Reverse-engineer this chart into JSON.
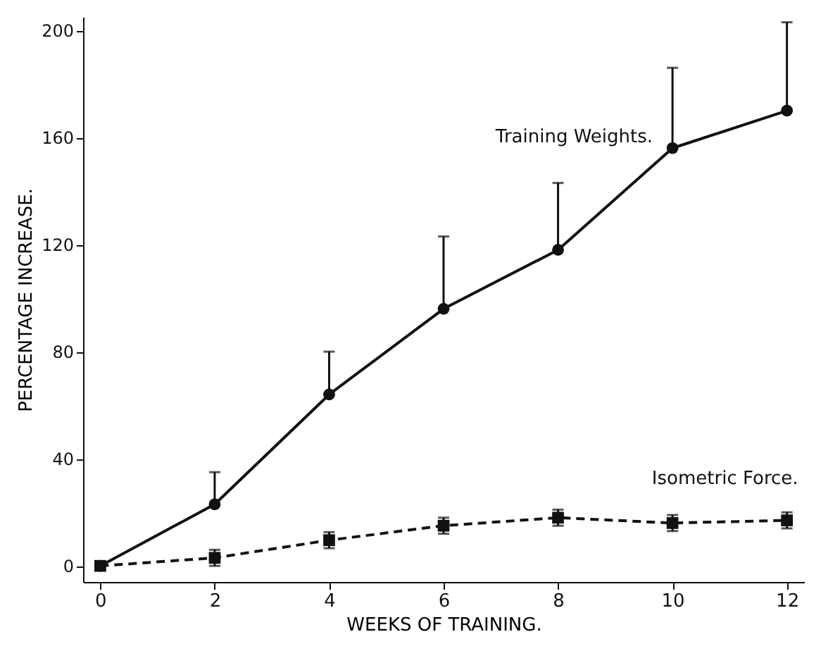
{
  "chart_data": {
    "type": "line",
    "xlabel": "WEEKS OF TRAINING.",
    "ylabel": "PERCENTAGE INCREASE.",
    "x": [
      0,
      2,
      4,
      6,
      8,
      10,
      12
    ],
    "xlim": [
      -0.3,
      12.3
    ],
    "xticks": [
      0,
      2,
      4,
      6,
      8,
      10,
      12
    ],
    "ylim": [
      -6,
      205
    ],
    "yticks": [
      0,
      40,
      80,
      120,
      160,
      200
    ],
    "grid": false,
    "series": [
      {
        "name": "Training Weights.",
        "color": "#111111",
        "marker": "circle",
        "line_style": "solid",
        "values": [
          0,
          23,
          64,
          96,
          118,
          156,
          170
        ],
        "errors": [
          null,
          [
            23,
            35
          ],
          [
            64,
            80
          ],
          [
            96,
            123
          ],
          [
            118,
            143
          ],
          [
            156,
            186
          ],
          [
            170,
            203
          ]
        ]
      },
      {
        "name": "Isometric Force.",
        "color": "#111111",
        "marker": "square",
        "line_style": "dashed",
        "values": [
          0,
          3,
          9.6,
          15,
          18,
          16,
          17
        ],
        "errors": [
          null,
          3,
          3,
          3,
          3,
          3,
          3
        ]
      }
    ]
  }
}
